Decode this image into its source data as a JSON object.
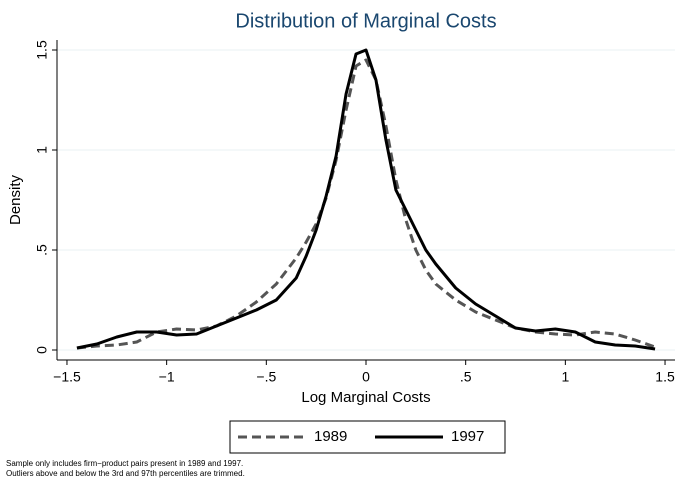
{
  "chart_data": {
    "type": "line",
    "title": "Distribution of Marginal Costs",
    "x_label": "Log Marginal Costs",
    "y_label": "Density",
    "notes": [
      "Sample only includes firm−product pairs present in 1989 and 1997.",
      "Outliers above and below the 3rd and 97th percentiles are trimmed."
    ],
    "x": [
      -1.45,
      -1.35,
      -1.25,
      -1.15,
      -1.05,
      -0.95,
      -0.85,
      -0.75,
      -0.65,
      -0.55,
      -0.45,
      -0.35,
      -0.3,
      -0.25,
      -0.2,
      -0.15,
      -0.1,
      -0.05,
      0,
      0.05,
      0.1,
      0.15,
      0.2,
      0.25,
      0.3,
      0.35,
      0.45,
      0.55,
      0.65,
      0.75,
      0.85,
      0.95,
      1.05,
      1.15,
      1.25,
      1.35,
      1.45
    ],
    "series": [
      {
        "name": "1989",
        "color": "#555555",
        "dash": true,
        "values": [
          0.01,
          0.02,
          0.025,
          0.04,
          0.09,
          0.105,
          0.1,
          0.12,
          0.17,
          0.24,
          0.33,
          0.46,
          0.54,
          0.63,
          0.76,
          0.95,
          1.2,
          1.42,
          1.45,
          1.35,
          1.12,
          0.85,
          0.65,
          0.5,
          0.4,
          0.33,
          0.25,
          0.19,
          0.15,
          0.11,
          0.09,
          0.08,
          0.075,
          0.09,
          0.08,
          0.05,
          0.015
        ]
      },
      {
        "name": "1997",
        "color": "#000000",
        "dash": false,
        "values": [
          0.01,
          0.03,
          0.065,
          0.09,
          0.09,
          0.075,
          0.08,
          0.12,
          0.16,
          0.2,
          0.25,
          0.36,
          0.47,
          0.6,
          0.77,
          0.97,
          1.28,
          1.48,
          1.5,
          1.35,
          1.05,
          0.8,
          0.7,
          0.6,
          0.5,
          0.43,
          0.31,
          0.23,
          0.17,
          0.11,
          0.095,
          0.105,
          0.09,
          0.04,
          0.025,
          0.02,
          0.005
        ]
      }
    ],
    "xlim": [
      -1.55,
      1.55
    ],
    "xticks": [
      {
        "value": -1.5,
        "label": "−1.5"
      },
      {
        "value": -1,
        "label": "−1"
      },
      {
        "value": -0.5,
        "label": "−.5"
      },
      0,
      {
        "value": 0.5,
        "label": ".5"
      },
      1,
      1.5
    ],
    "ylim": [
      -0.05,
      1.55
    ],
    "yticks": [
      0,
      {
        "value": 0.5,
        "label": ".5"
      },
      1,
      1.5
    ],
    "grid": true,
    "legend": "bottom"
  }
}
